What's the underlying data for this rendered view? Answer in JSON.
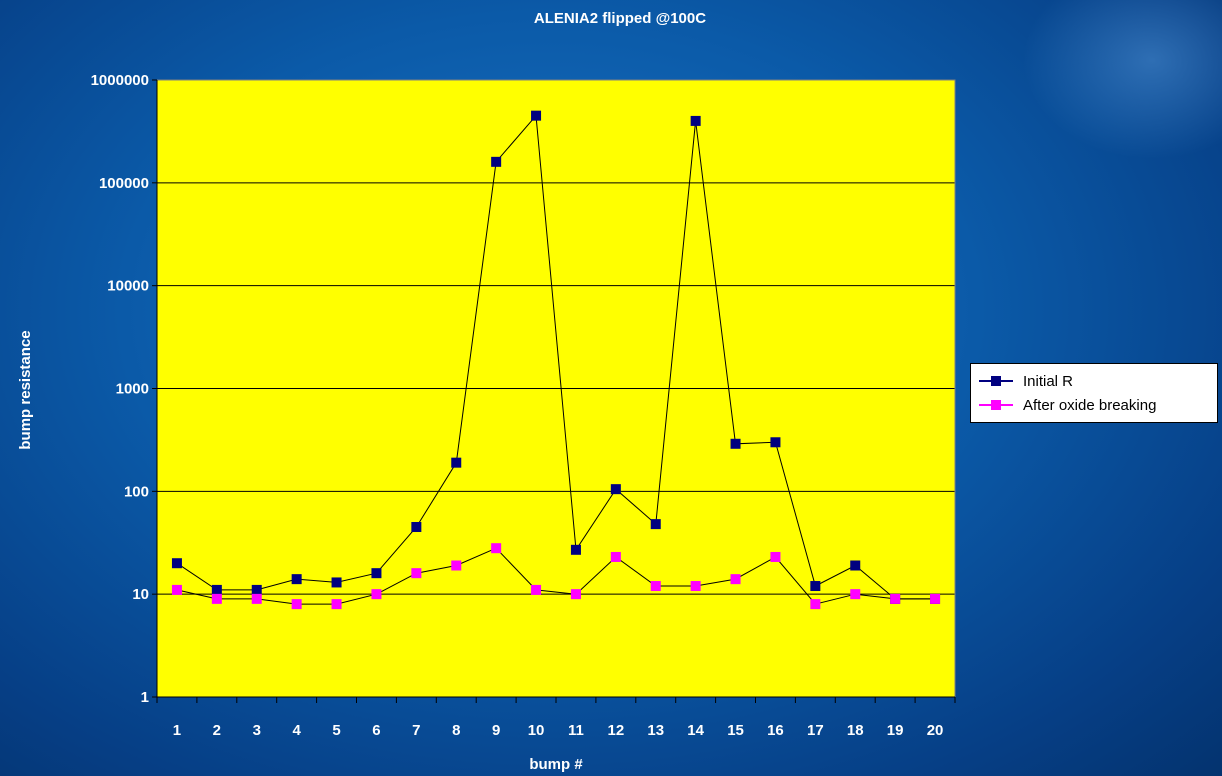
{
  "chart_data": {
    "type": "line",
    "title": "ALENIA2 flipped @100C",
    "xlabel": "bump #",
    "ylabel": "bump resistance",
    "categories": [
      "1",
      "2",
      "3",
      "4",
      "5",
      "6",
      "7",
      "8",
      "9",
      "10",
      "11",
      "12",
      "13",
      "14",
      "15",
      "16",
      "17",
      "18",
      "19",
      "20"
    ],
    "y_scale": "log",
    "ylim": [
      1,
      1000000
    ],
    "y_ticks": [
      "1",
      "10",
      "100",
      "1000",
      "10000",
      "100000",
      "1000000"
    ],
    "grid": true,
    "plot_background": "#ffff00",
    "legend_position": "right",
    "series": [
      {
        "name": "Initial R",
        "color": "#000080",
        "values": [
          20,
          11,
          11,
          14,
          13,
          16,
          45,
          190,
          160000,
          450000,
          27,
          105,
          48,
          400000,
          290,
          300,
          12,
          19,
          9,
          9
        ]
      },
      {
        "name": "After oxide breaking",
        "color": "#ff00ff",
        "values": [
          11,
          9,
          9,
          8,
          8,
          10,
          16,
          19,
          28,
          11,
          10,
          23,
          12,
          12,
          14,
          23,
          8,
          10,
          9,
          9
        ]
      }
    ]
  }
}
